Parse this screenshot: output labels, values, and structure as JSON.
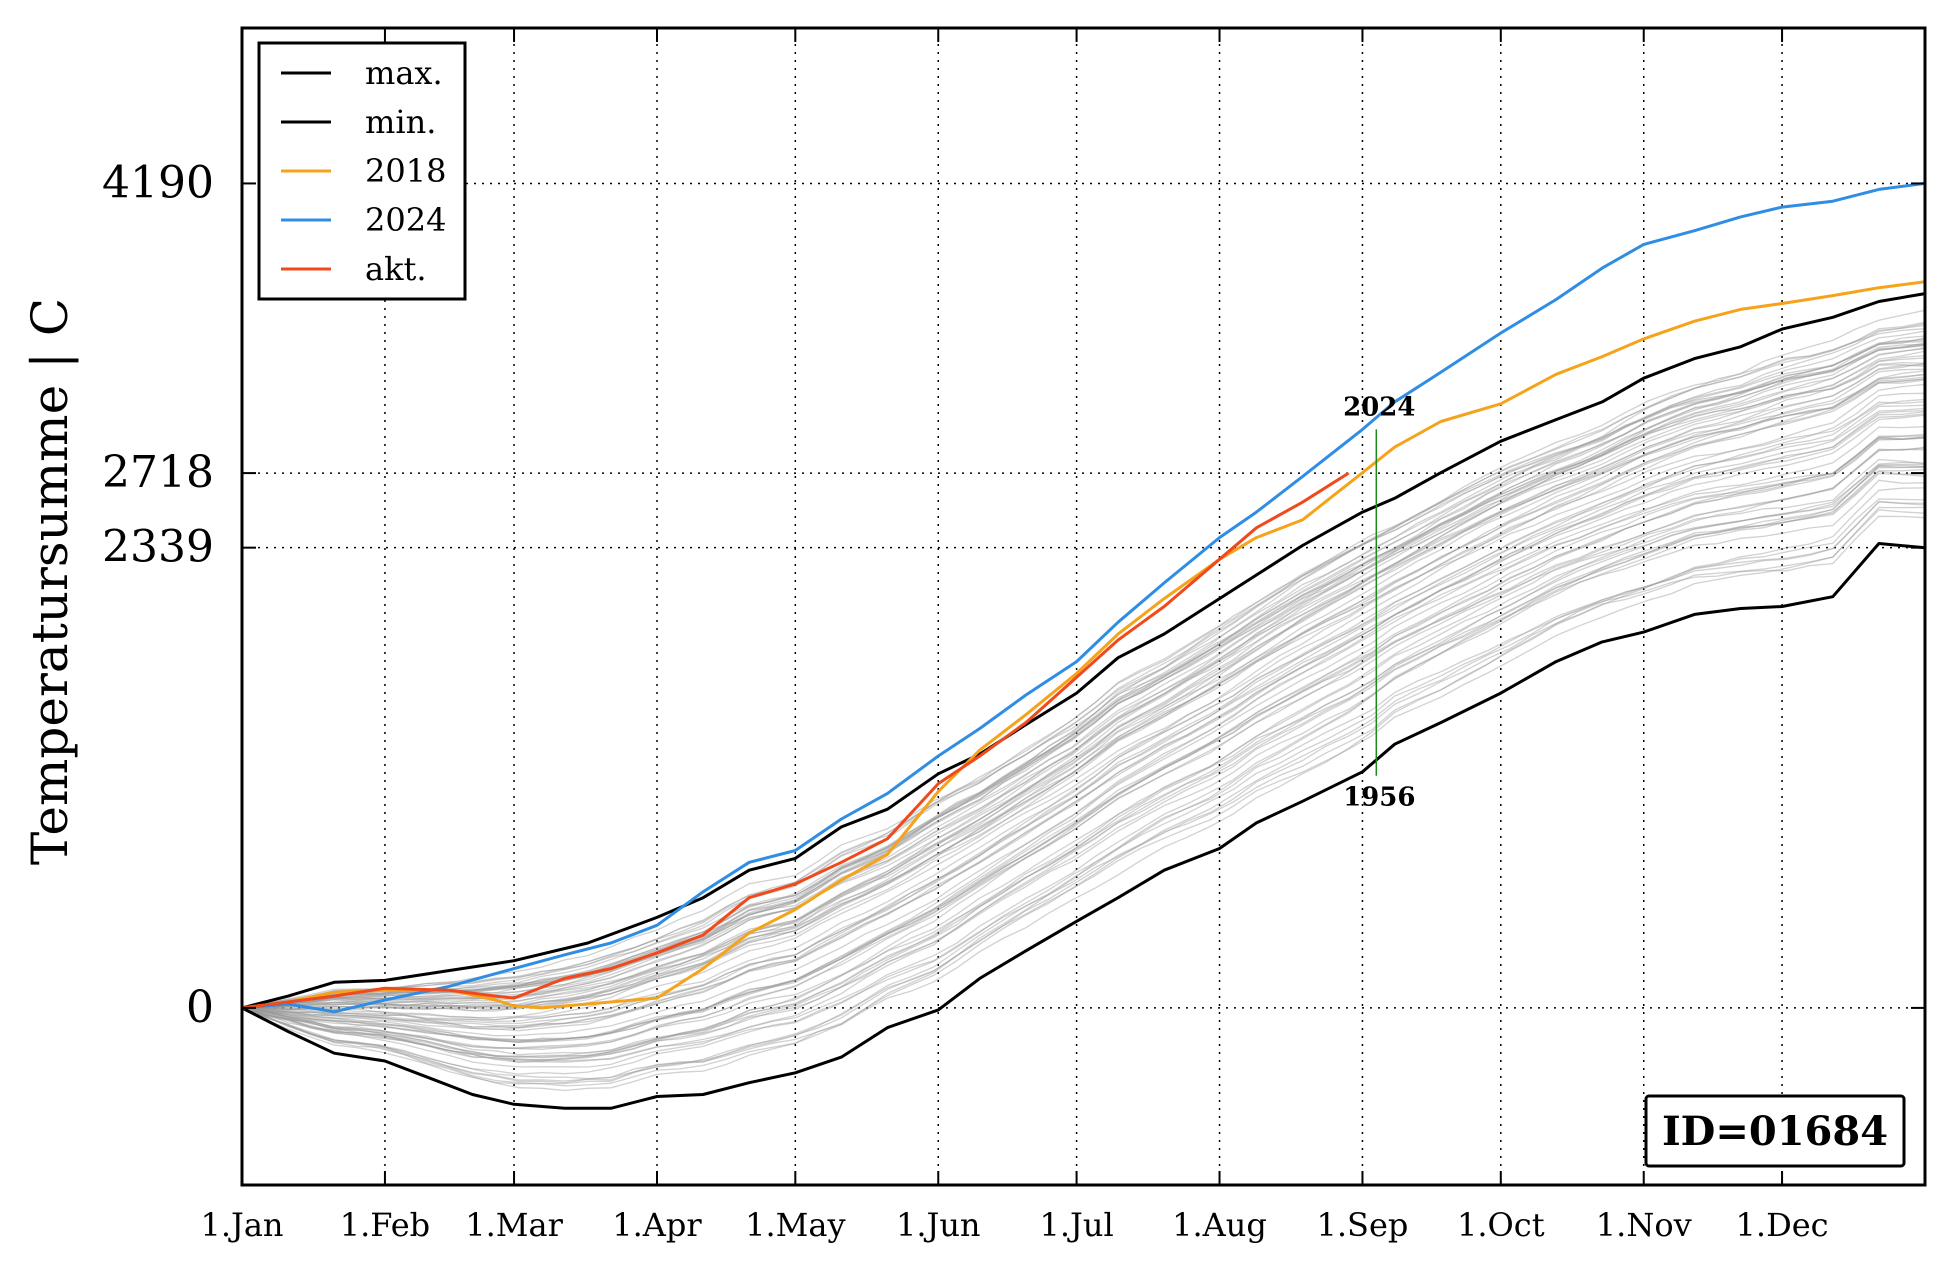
{
  "chart_data": {
    "type": "line",
    "title": "",
    "ylabel": "Temperatursumme | C",
    "xlabel": "",
    "xlim": [
      0,
      365
    ],
    "ylim": [
      -900,
      4980
    ],
    "x_ticks": [
      {
        "day": 0,
        "label": "1.Jan"
      },
      {
        "day": 31,
        "label": "1.Feb"
      },
      {
        "day": 59,
        "label": "1.Mar"
      },
      {
        "day": 90,
        "label": "1.Apr"
      },
      {
        "day": 120,
        "label": "1.May"
      },
      {
        "day": 151,
        "label": "1.Jun"
      },
      {
        "day": 181,
        "label": "1.Jul"
      },
      {
        "day": 212,
        "label": "1.Aug"
      },
      {
        "day": 243,
        "label": "1.Sep"
      },
      {
        "day": 273,
        "label": "1.Oct"
      },
      {
        "day": 304,
        "label": "1.Nov"
      },
      {
        "day": 334,
        "label": "1.Dec"
      }
    ],
    "y_ticks": [
      0,
      2339,
      2718,
      4190
    ],
    "grid": true,
    "legend": {
      "placement": "top-left",
      "entries": [
        {
          "label": "max.",
          "color": "#000000"
        },
        {
          "label": "min.",
          "color": "#000000"
        },
        {
          "label": "2018",
          "color": "#f5a31b"
        },
        {
          "label": "2024",
          "color": "#2f8de4"
        },
        {
          "label": "akt.",
          "color": "#f04a1c"
        }
      ]
    },
    "series": [
      {
        "name": "max.",
        "color": "#000000",
        "points": [
          [
            0,
            0
          ],
          [
            10,
            60
          ],
          [
            20,
            130
          ],
          [
            31,
            140
          ],
          [
            45,
            190
          ],
          [
            59,
            240
          ],
          [
            75,
            330
          ],
          [
            90,
            460
          ],
          [
            100,
            560
          ],
          [
            110,
            700
          ],
          [
            120,
            760
          ],
          [
            130,
            920
          ],
          [
            140,
            1010
          ],
          [
            151,
            1190
          ],
          [
            160,
            1290
          ],
          [
            170,
            1440
          ],
          [
            181,
            1600
          ],
          [
            190,
            1780
          ],
          [
            200,
            1900
          ],
          [
            212,
            2080
          ],
          [
            220,
            2200
          ],
          [
            230,
            2350
          ],
          [
            243,
            2520
          ],
          [
            250,
            2590
          ],
          [
            260,
            2720
          ],
          [
            273,
            2880
          ],
          [
            285,
            2990
          ],
          [
            295,
            3080
          ],
          [
            304,
            3200
          ],
          [
            315,
            3300
          ],
          [
            325,
            3360
          ],
          [
            334,
            3450
          ],
          [
            345,
            3510
          ],
          [
            355,
            3590
          ],
          [
            365,
            3630
          ]
        ]
      },
      {
        "name": "min.",
        "color": "#000000",
        "points": [
          [
            0,
            0
          ],
          [
            10,
            -120
          ],
          [
            20,
            -230
          ],
          [
            31,
            -270
          ],
          [
            40,
            -350
          ],
          [
            50,
            -440
          ],
          [
            59,
            -490
          ],
          [
            70,
            -510
          ],
          [
            80,
            -510
          ],
          [
            90,
            -450
          ],
          [
            100,
            -440
          ],
          [
            110,
            -380
          ],
          [
            120,
            -330
          ],
          [
            130,
            -250
          ],
          [
            140,
            -100
          ],
          [
            151,
            -10
          ],
          [
            160,
            150
          ],
          [
            170,
            290
          ],
          [
            181,
            440
          ],
          [
            190,
            560
          ],
          [
            200,
            700
          ],
          [
            212,
            810
          ],
          [
            220,
            940
          ],
          [
            230,
            1050
          ],
          [
            243,
            1200
          ],
          [
            250,
            1340
          ],
          [
            260,
            1450
          ],
          [
            273,
            1600
          ],
          [
            285,
            1760
          ],
          [
            295,
            1860
          ],
          [
            304,
            1910
          ],
          [
            315,
            2000
          ],
          [
            325,
            2030
          ],
          [
            334,
            2040
          ],
          [
            345,
            2090
          ],
          [
            355,
            2360
          ],
          [
            365,
            2339
          ]
        ]
      },
      {
        "name": "2018",
        "color": "#f5a31b",
        "points": [
          [
            0,
            0
          ],
          [
            10,
            30
          ],
          [
            20,
            80
          ],
          [
            31,
            90
          ],
          [
            45,
            90
          ],
          [
            55,
            40
          ],
          [
            59,
            10
          ],
          [
            65,
            0
          ],
          [
            75,
            20
          ],
          [
            85,
            40
          ],
          [
            90,
            50
          ],
          [
            100,
            200
          ],
          [
            110,
            380
          ],
          [
            120,
            500
          ],
          [
            130,
            650
          ],
          [
            140,
            780
          ],
          [
            151,
            1100
          ],
          [
            160,
            1310
          ],
          [
            170,
            1490
          ],
          [
            181,
            1700
          ],
          [
            190,
            1900
          ],
          [
            200,
            2080
          ],
          [
            212,
            2280
          ],
          [
            220,
            2390
          ],
          [
            230,
            2480
          ],
          [
            243,
            2720
          ],
          [
            250,
            2850
          ],
          [
            260,
            2980
          ],
          [
            273,
            3070
          ],
          [
            285,
            3220
          ],
          [
            295,
            3310
          ],
          [
            304,
            3400
          ],
          [
            315,
            3490
          ],
          [
            325,
            3550
          ],
          [
            334,
            3580
          ],
          [
            345,
            3620
          ],
          [
            355,
            3660
          ],
          [
            365,
            3690
          ]
        ]
      },
      {
        "name": "2024",
        "color": "#2f8de4",
        "points": [
          [
            0,
            0
          ],
          [
            10,
            20
          ],
          [
            20,
            -20
          ],
          [
            31,
            40
          ],
          [
            45,
            110
          ],
          [
            59,
            200
          ],
          [
            70,
            270
          ],
          [
            80,
            330
          ],
          [
            90,
            420
          ],
          [
            100,
            590
          ],
          [
            110,
            740
          ],
          [
            120,
            800
          ],
          [
            130,
            960
          ],
          [
            140,
            1090
          ],
          [
            151,
            1280
          ],
          [
            160,
            1420
          ],
          [
            170,
            1590
          ],
          [
            181,
            1760
          ],
          [
            190,
            1960
          ],
          [
            200,
            2160
          ],
          [
            212,
            2390
          ],
          [
            220,
            2520
          ],
          [
            230,
            2700
          ],
          [
            243,
            2940
          ],
          [
            250,
            3080
          ],
          [
            260,
            3230
          ],
          [
            273,
            3430
          ],
          [
            285,
            3600
          ],
          [
            295,
            3760
          ],
          [
            304,
            3880
          ],
          [
            315,
            3950
          ],
          [
            325,
            4020
          ],
          [
            334,
            4070
          ],
          [
            345,
            4100
          ],
          [
            355,
            4160
          ],
          [
            365,
            4190
          ]
        ]
      },
      {
        "name": "akt.",
        "color": "#f04a1c",
        "points": [
          [
            0,
            0
          ],
          [
            10,
            30
          ],
          [
            20,
            60
          ],
          [
            31,
            100
          ],
          [
            45,
            90
          ],
          [
            55,
            60
          ],
          [
            59,
            50
          ],
          [
            70,
            150
          ],
          [
            80,
            200
          ],
          [
            90,
            280
          ],
          [
            100,
            370
          ],
          [
            110,
            560
          ],
          [
            120,
            630
          ],
          [
            130,
            740
          ],
          [
            140,
            860
          ],
          [
            151,
            1140
          ],
          [
            160,
            1280
          ],
          [
            170,
            1450
          ],
          [
            181,
            1680
          ],
          [
            190,
            1870
          ],
          [
            200,
            2040
          ],
          [
            212,
            2280
          ],
          [
            220,
            2440
          ],
          [
            230,
            2570
          ],
          [
            240,
            2718
          ]
        ]
      }
    ],
    "annotations": [
      {
        "text": "2024",
        "x": 246,
        "y": 2940
      },
      {
        "text": "1956",
        "x": 246,
        "y": 1180
      }
    ],
    "range_marker": {
      "x": 246,
      "y_low": 1180,
      "y_high": 2940,
      "color": "#1a8a1a"
    },
    "id_label": "ID=01684"
  }
}
